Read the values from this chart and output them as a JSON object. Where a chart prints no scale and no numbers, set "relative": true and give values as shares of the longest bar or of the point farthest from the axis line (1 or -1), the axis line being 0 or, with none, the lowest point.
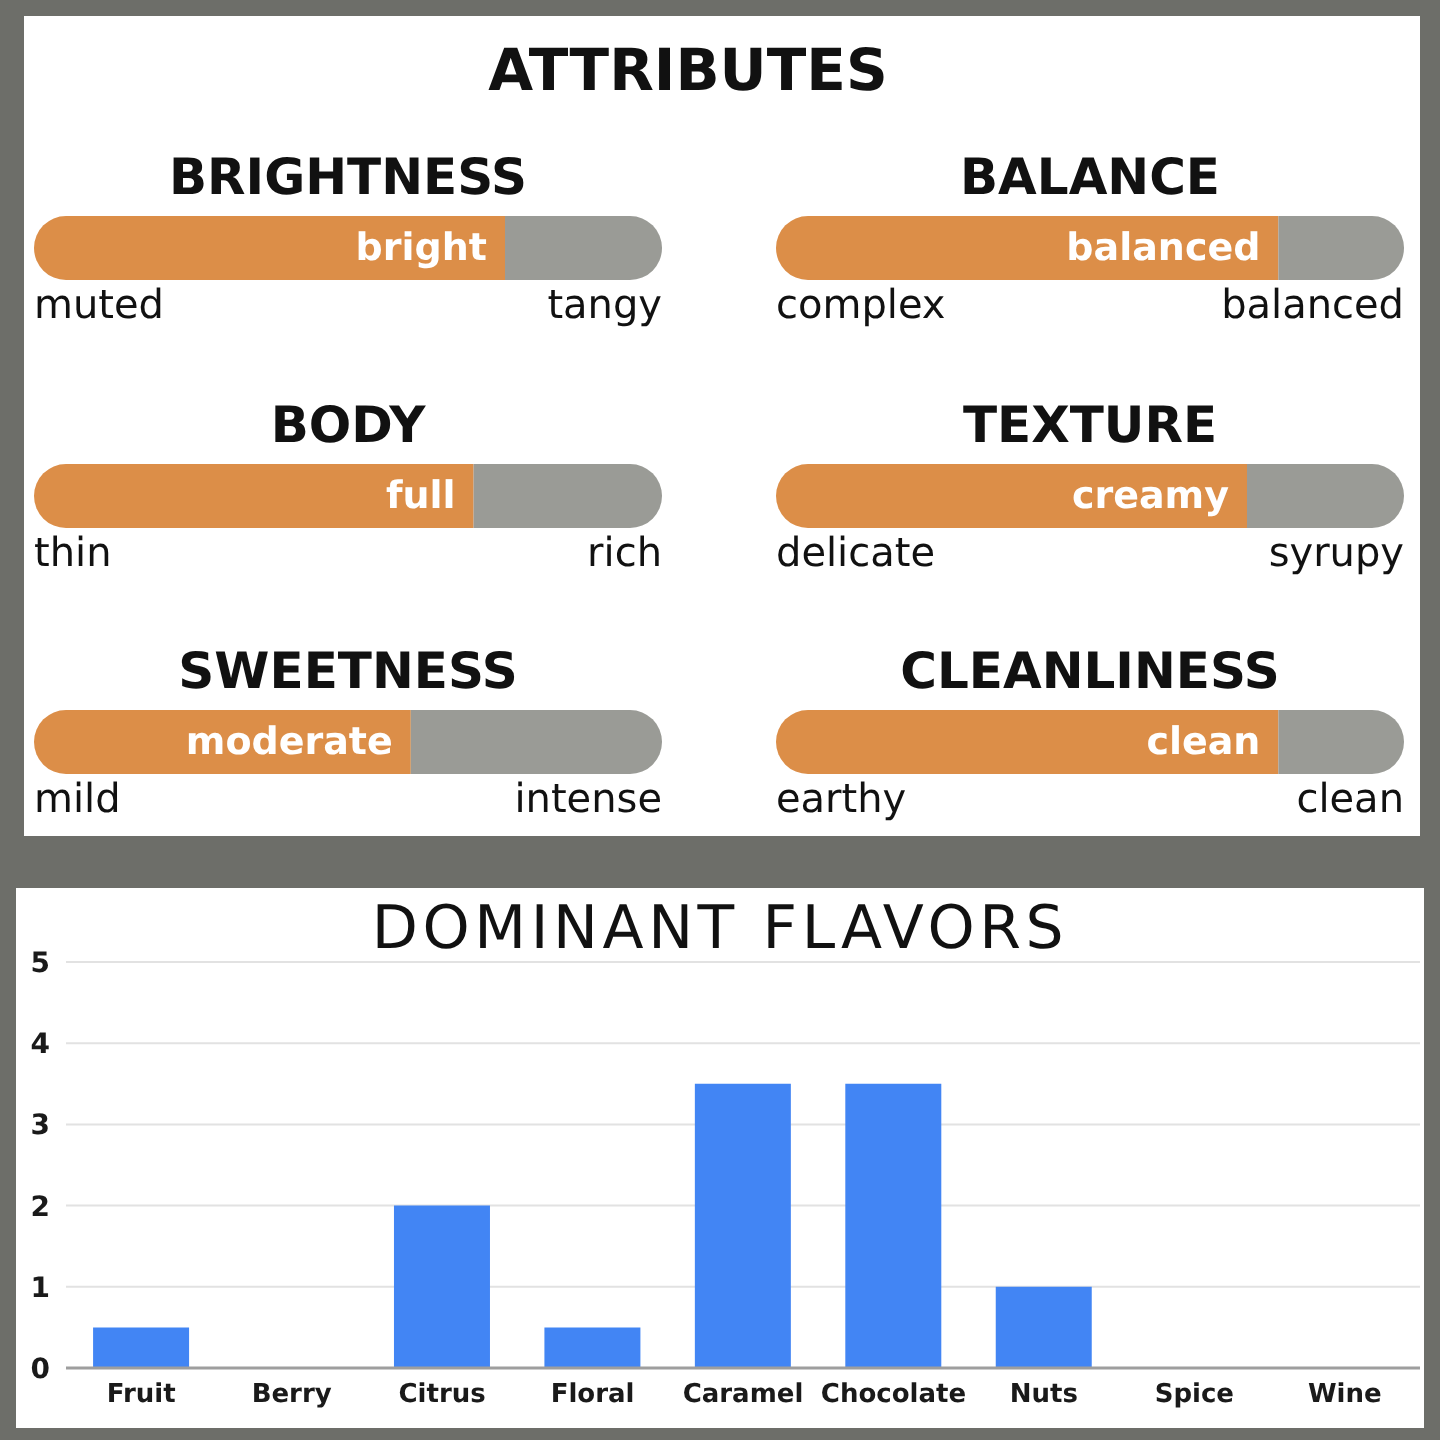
{
  "chart_data": [
    {
      "type": "other",
      "title": "ATTRIBUTES"
    },
    {
      "type": "bar",
      "title": "BRIGHTNESS",
      "orientation": "horizontal",
      "stacked": true,
      "relative": true,
      "categories": [
        null
      ],
      "series": [
        {
          "color": "#dc8e48",
          "values": [
            0.75
          ]
        },
        {
          "color": "#9a9b96",
          "values": [
            0.25
          ]
        }
      ],
      "annotations": [
        "muted",
        "tangy",
        {
          "text": "bright",
          "x": 0.75
        }
      ]
    },
    {
      "type": "bar",
      "title": "BALANCE",
      "orientation": "horizontal",
      "stacked": true,
      "relative": true,
      "categories": [
        null
      ],
      "series": [
        {
          "color": "#dc8e48",
          "values": [
            0.8
          ]
        },
        {
          "color": "#9a9b96",
          "values": [
            0.2
          ]
        }
      ],
      "annotations": [
        "complex",
        "balanced",
        {
          "text": "balanced",
          "x": 0.8
        }
      ]
    },
    {
      "type": "bar",
      "title": "BODY",
      "orientation": "horizontal",
      "stacked": true,
      "relative": true,
      "categories": [
        null
      ],
      "series": [
        {
          "color": "#dc8e48",
          "values": [
            0.7
          ]
        },
        {
          "color": "#9a9b96",
          "values": [
            0.3
          ]
        }
      ],
      "annotations": [
        "thin",
        "rich",
        {
          "text": "full",
          "x": 0.7
        }
      ]
    },
    {
      "type": "bar",
      "title": "TEXTURE",
      "orientation": "horizontal",
      "stacked": true,
      "relative": true,
      "categories": [
        null
      ],
      "series": [
        {
          "color": "#dc8e48",
          "values": [
            0.75
          ]
        },
        {
          "color": "#9a9b96",
          "values": [
            0.25
          ]
        }
      ],
      "annotations": [
        "delicate",
        "syrupy",
        {
          "text": "creamy",
          "x": 0.75
        }
      ]
    },
    {
      "type": "bar",
      "title": "SWEETNESS",
      "orientation": "horizontal",
      "stacked": true,
      "relative": true,
      "categories": [
        null
      ],
      "series": [
        {
          "color": "#dc8e48",
          "values": [
            0.6
          ]
        },
        {
          "color": "#9a9b96",
          "values": [
            0.4
          ]
        }
      ],
      "annotations": [
        "mild",
        "intense",
        {
          "text": "moderate",
          "x": 0.6
        }
      ]
    },
    {
      "type": "bar",
      "title": "CLEANLINESS",
      "orientation": "horizontal",
      "stacked": true,
      "relative": true,
      "categories": [
        null
      ],
      "series": [
        {
          "color": "#dc8e48",
          "values": [
            0.8
          ]
        },
        {
          "color": "#9a9b96",
          "values": [
            0.2
          ]
        }
      ],
      "annotations": [
        "earthy",
        "clean",
        {
          "text": "clean",
          "x": 0.8
        }
      ]
    },
    {
      "type": "bar",
      "title": "DOMINANT FLAVORS",
      "categories": [
        "Fruit",
        "Berry",
        "Citrus",
        "Floral",
        "Caramel",
        "Chocolate",
        "Nuts",
        "Spice",
        "Wine"
      ],
      "values": [
        0.5,
        0,
        2,
        0.5,
        3.5,
        3.5,
        1,
        0,
        0
      ],
      "color": "#4285f4",
      "ylim": [
        0,
        5
      ],
      "yticks": [
        0,
        1,
        2,
        3,
        4,
        5
      ],
      "grid": "y"
    }
  ]
}
